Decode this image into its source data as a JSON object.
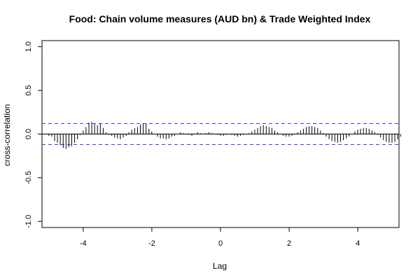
{
  "chart_data": {
    "type": "bar",
    "title": "Food: Chain volume measures (AUD bn) & Trade Weighted Index",
    "xlabel": "Lag",
    "ylabel": "cross-correlation",
    "xlim": [
      -5.2,
      5.2
    ],
    "ylim": [
      -1.07,
      1.07
    ],
    "x_ticks": [
      -4,
      -2,
      0,
      2,
      4
    ],
    "y_ticks": [
      -1.0,
      -0.5,
      0.0,
      0.5,
      1.0
    ],
    "x_tick_labels": [
      "-4",
      "-2",
      "0",
      "2",
      "4"
    ],
    "y_tick_labels": [
      "-1.0",
      "-0.5",
      "0.0",
      "0.5",
      "1.0"
    ],
    "confidence_limit": 0.12,
    "zero_line": true,
    "colors": {
      "bars": "#000000",
      "confidence": "#3b3bff",
      "zero": "#000000",
      "frame": "#000000"
    },
    "lag_step": 0.0833,
    "lags_from": -5.0,
    "values": [
      -0.02,
      -0.03,
      -0.08,
      -0.1,
      -0.13,
      -0.16,
      -0.17,
      -0.15,
      -0.14,
      -0.1,
      -0.06,
      -0.01,
      0.04,
      0.08,
      0.13,
      0.14,
      0.12,
      0.1,
      0.12,
      0.07,
      0.02,
      -0.01,
      -0.02,
      -0.04,
      -0.05,
      -0.06,
      -0.04,
      -0.02,
      0.02,
      0.05,
      0.07,
      0.08,
      0.11,
      0.12,
      0.12,
      0.06,
      0.03,
      0.0,
      -0.03,
      -0.05,
      -0.05,
      -0.06,
      -0.05,
      -0.03,
      -0.02,
      0.0,
      0.02,
      0.01,
      0.0,
      -0.01,
      -0.02,
      0.0,
      0.02,
      0.01,
      0.0,
      0.01,
      0.02,
      0.01,
      0.0,
      -0.01,
      -0.02,
      -0.02,
      -0.01,
      0.0,
      -0.01,
      -0.02,
      -0.03,
      -0.02,
      -0.01,
      0.0,
      0.01,
      0.03,
      0.05,
      0.07,
      0.09,
      0.1,
      0.09,
      0.08,
      0.07,
      0.04,
      0.02,
      0.0,
      -0.02,
      -0.03,
      -0.03,
      -0.02,
      0.0,
      0.02,
      0.04,
      0.06,
      0.08,
      0.09,
      0.09,
      0.08,
      0.07,
      0.04,
      0.01,
      -0.03,
      -0.06,
      -0.08,
      -0.09,
      -0.1,
      -0.09,
      -0.07,
      -0.05,
      -0.03,
      0.0,
      0.03,
      0.05,
      0.06,
      0.07,
      0.07,
      0.06,
      0.04,
      0.02,
      -0.01,
      -0.04,
      -0.07,
      -0.09,
      -0.1,
      -0.1,
      -0.09,
      -0.06,
      -0.03,
      0.0
    ]
  }
}
